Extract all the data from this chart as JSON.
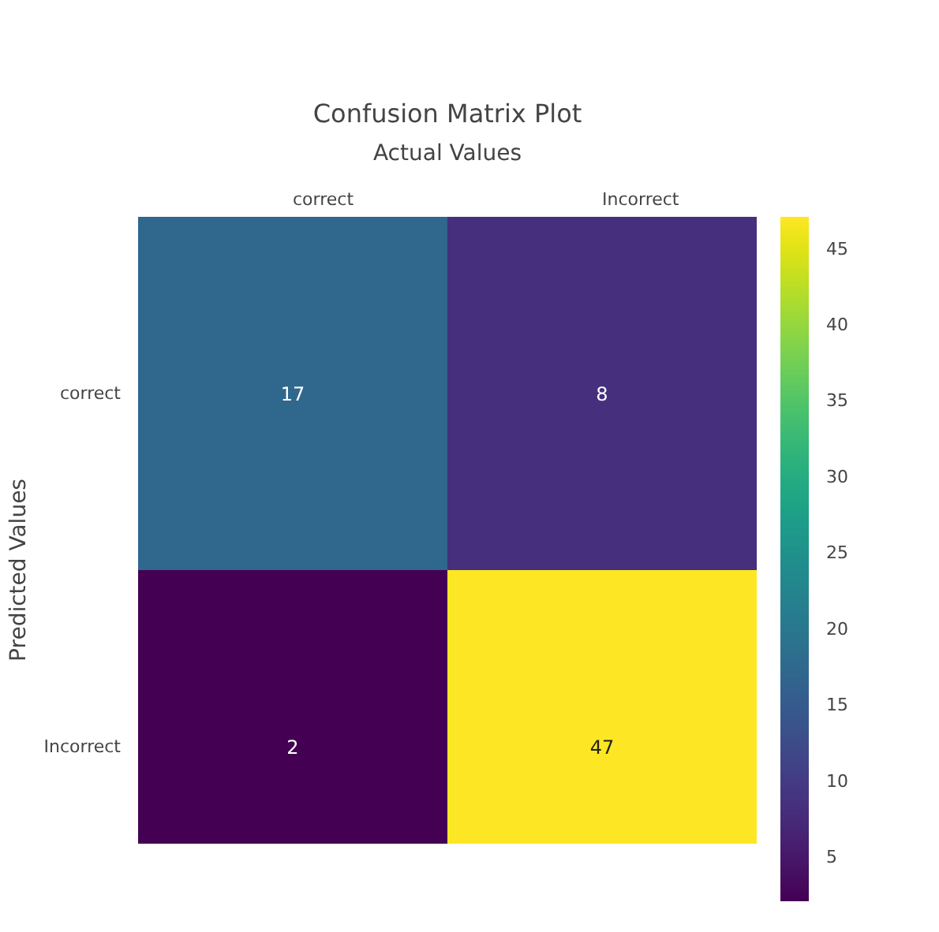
{
  "chart_data": {
    "type": "heatmap",
    "title": "Confusion Matrix Plot",
    "xlabel": "Actual Values",
    "ylabel": "Predicted Values",
    "categories": [
      "correct",
      "Incorrect"
    ],
    "y_categories": [
      "correct",
      "Incorrect"
    ],
    "cells": [
      [
        17,
        8
      ],
      [
        2,
        47
      ]
    ],
    "data_labels": true,
    "clim": [
      2,
      47
    ],
    "cticks": [
      5,
      10,
      15,
      20,
      25,
      30,
      35,
      40,
      45
    ]
  }
}
